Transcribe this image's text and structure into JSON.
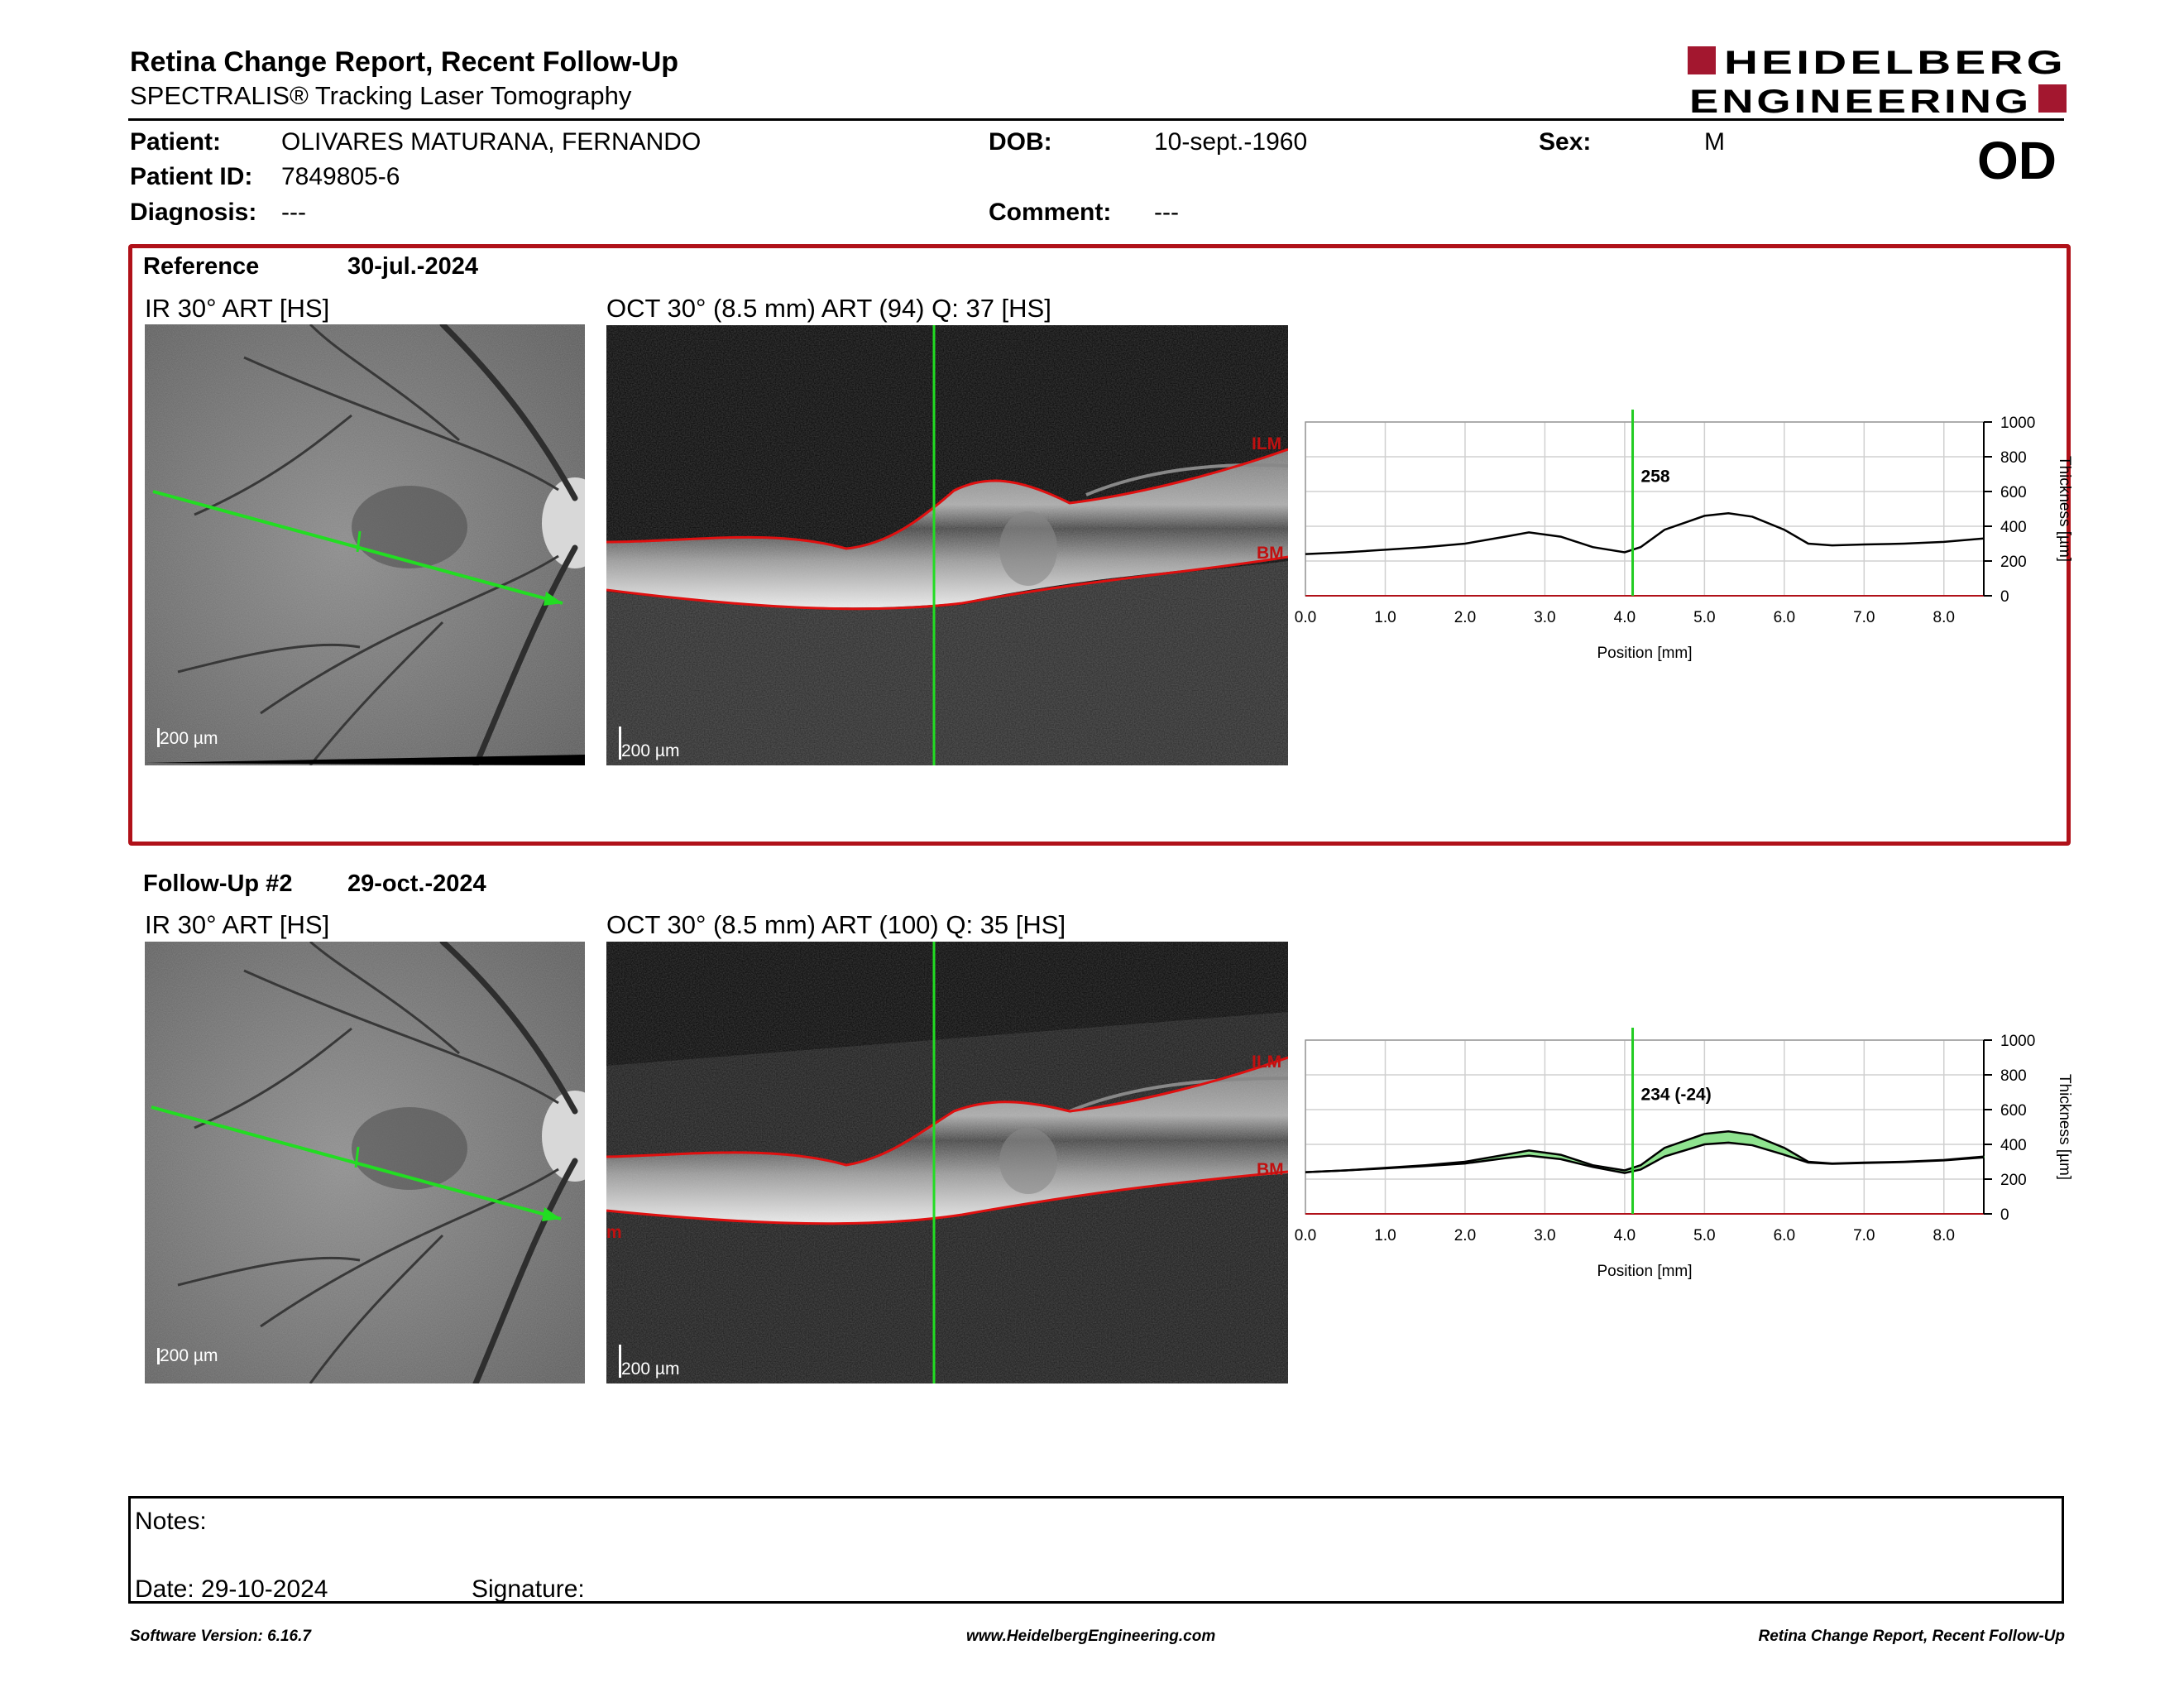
{
  "header": {
    "title": "Retina Change Report, Recent Follow-Up",
    "subtitle": "SPECTRALIS® Tracking Laser Tomography",
    "logo_line1": "HEIDELBERG",
    "logo_line2": "ENGINEERING",
    "brand_color": "#a3172f"
  },
  "patient": {
    "patient_label": "Patient:",
    "patient_value": "OLIVARES MATURANA, FERNANDO",
    "id_label": "Patient ID:",
    "id_value": "7849805-6",
    "diagnosis_label": "Diagnosis:",
    "diagnosis_value": "---",
    "dob_label": "DOB:",
    "dob_value": "10-sept.-1960",
    "comment_label": "Comment:",
    "comment_value": "---",
    "sex_label": "Sex:",
    "sex_value": "M",
    "eye": "OD"
  },
  "reference": {
    "label": "Reference",
    "date": "30-jul.-2024",
    "ir_caption": "IR 30° ART [HS]",
    "oct_caption": "OCT 30° (8.5 mm) ART (94) Q: 37 [HS]",
    "ir_scale": "200 µm",
    "oct_scale": "200 µm",
    "ilm_label": "ILM",
    "bm_label": "BM"
  },
  "followup": {
    "label": "Follow-Up #2",
    "date": "29-oct.-2024",
    "ir_caption": "IR 30° ART [HS]",
    "oct_caption": "OCT 30° (8.5 mm) ART (100) Q: 35 [HS]",
    "ir_scale": "200 µm",
    "oct_scale": "200 µm",
    "ilm_label": "ILM",
    "bm_label": "BM",
    "edge_label": "m"
  },
  "chart_data": [
    {
      "type": "line",
      "xlabel": "Position [mm]",
      "ylabel": "Thickness [µm]",
      "xlim": [
        0,
        8.5
      ],
      "ylim": [
        0,
        1000
      ],
      "x_ticks": [
        "0.0",
        "1.0",
        "2.0",
        "3.0",
        "4.0",
        "5.0",
        "6.0",
        "7.0",
        "8.0"
      ],
      "y_ticks": [
        "0",
        "200",
        "400",
        "600",
        "800",
        "1000"
      ],
      "cursor_x": 4.1,
      "cursor_label": "258",
      "grid": true,
      "series": [
        {
          "x": [
            0,
            0.5,
            1,
            1.5,
            2,
            2.5,
            2.8,
            3.2,
            3.6,
            4.0,
            4.2,
            4.5,
            5.0,
            5.3,
            5.6,
            6.0,
            6.3,
            6.6,
            7.0,
            7.5,
            8.0,
            8.5
          ],
          "y": [
            240,
            250,
            265,
            280,
            300,
            340,
            365,
            340,
            280,
            250,
            280,
            380,
            460,
            475,
            455,
            380,
            300,
            290,
            295,
            300,
            310,
            330
          ]
        }
      ],
      "line_color": "#000000",
      "cursor_color": "#22cc22"
    },
    {
      "type": "area",
      "xlabel": "Position [mm]",
      "ylabel": "Thickness [µm]",
      "xlim": [
        0,
        8.5
      ],
      "ylim": [
        0,
        1000
      ],
      "x_ticks": [
        "0.0",
        "1.0",
        "2.0",
        "3.0",
        "4.0",
        "5.0",
        "6.0",
        "7.0",
        "8.0"
      ],
      "y_ticks": [
        "0",
        "200",
        "400",
        "600",
        "800",
        "1000"
      ],
      "cursor_x": 4.1,
      "cursor_label": "234 (-24)",
      "grid": true,
      "series": [
        {
          "x": [
            0,
            0.5,
            1,
            1.5,
            2,
            2.5,
            2.8,
            3.2,
            3.6,
            4.0,
            4.2,
            4.5,
            5.0,
            5.3,
            5.6,
            6.0,
            6.3,
            6.6,
            7.0,
            7.5,
            8.0,
            8.5
          ],
          "y": [
            240,
            250,
            265,
            280,
            300,
            340,
            365,
            340,
            280,
            250,
            280,
            380,
            460,
            475,
            455,
            380,
            300,
            290,
            295,
            300,
            310,
            330
          ]
        },
        {
          "x": [
            0,
            0.5,
            1,
            1.5,
            2,
            2.5,
            2.8,
            3.2,
            3.6,
            4.0,
            4.2,
            4.5,
            5.0,
            5.3,
            5.6,
            6.0,
            6.3,
            6.6,
            7.0,
            7.5,
            8.0,
            8.5
          ],
          "y": [
            240,
            250,
            262,
            275,
            290,
            320,
            335,
            315,
            270,
            235,
            255,
            330,
            400,
            410,
            395,
            340,
            295,
            288,
            293,
            298,
            308,
            325
          ]
        }
      ],
      "fill_color": "#8fe38f",
      "line_color": "#000000",
      "cursor_color": "#22cc22"
    }
  ],
  "notes": {
    "notes_label": "Notes:",
    "date_label": "Date: 29-10-2024",
    "signature_label": "Signature:"
  },
  "footer": {
    "left": "Software Version: 6.16.7",
    "center": "www.HeidelbergEngineering.com",
    "right": "Retina Change Report, Recent Follow-Up"
  }
}
